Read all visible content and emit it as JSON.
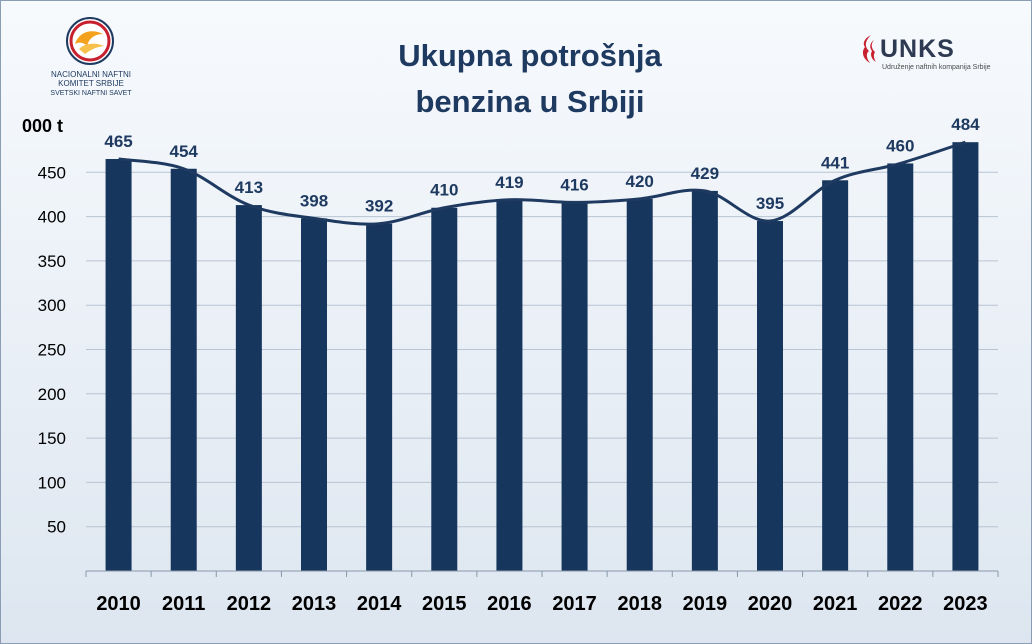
{
  "logos": {
    "left": {
      "line1": "NACIONALNI NAFTNI",
      "line2": "KOMITET SRBIJE",
      "line3": "SVETSKI NAFTNI SAVET"
    },
    "right": {
      "name": "UNKS",
      "subtitle": "Udruženje naftnih kompanija Srbije",
      "accent_color": "#c8202f"
    }
  },
  "chart_data": {
    "type": "bar",
    "title_lines": [
      "Ukupna potrošnja",
      "benzina u Srbiji"
    ],
    "ylabel": "000 t",
    "xlabel": "",
    "categories": [
      "2010",
      "2011",
      "2012",
      "2013",
      "2014",
      "2015",
      "2016",
      "2017",
      "2018",
      "2019",
      "2020",
      "2021",
      "2022",
      "2023"
    ],
    "series": [
      {
        "values": [
          465,
          454,
          413,
          398,
          392,
          410,
          419,
          416,
          420,
          429,
          395,
          441,
          460,
          484
        ]
      }
    ],
    "overlay": "smoothed line through bar tops",
    "ylim": [
      0,
      500
    ],
    "yticks": [
      50,
      100,
      150,
      200,
      250,
      300,
      350,
      400,
      450
    ],
    "data_labels": true,
    "grid": true,
    "legend": "none",
    "colors": {
      "bar": "#17365d",
      "line": "#1f3a60",
      "label": "#1f3a60",
      "grid": "#b8c4d2"
    }
  }
}
